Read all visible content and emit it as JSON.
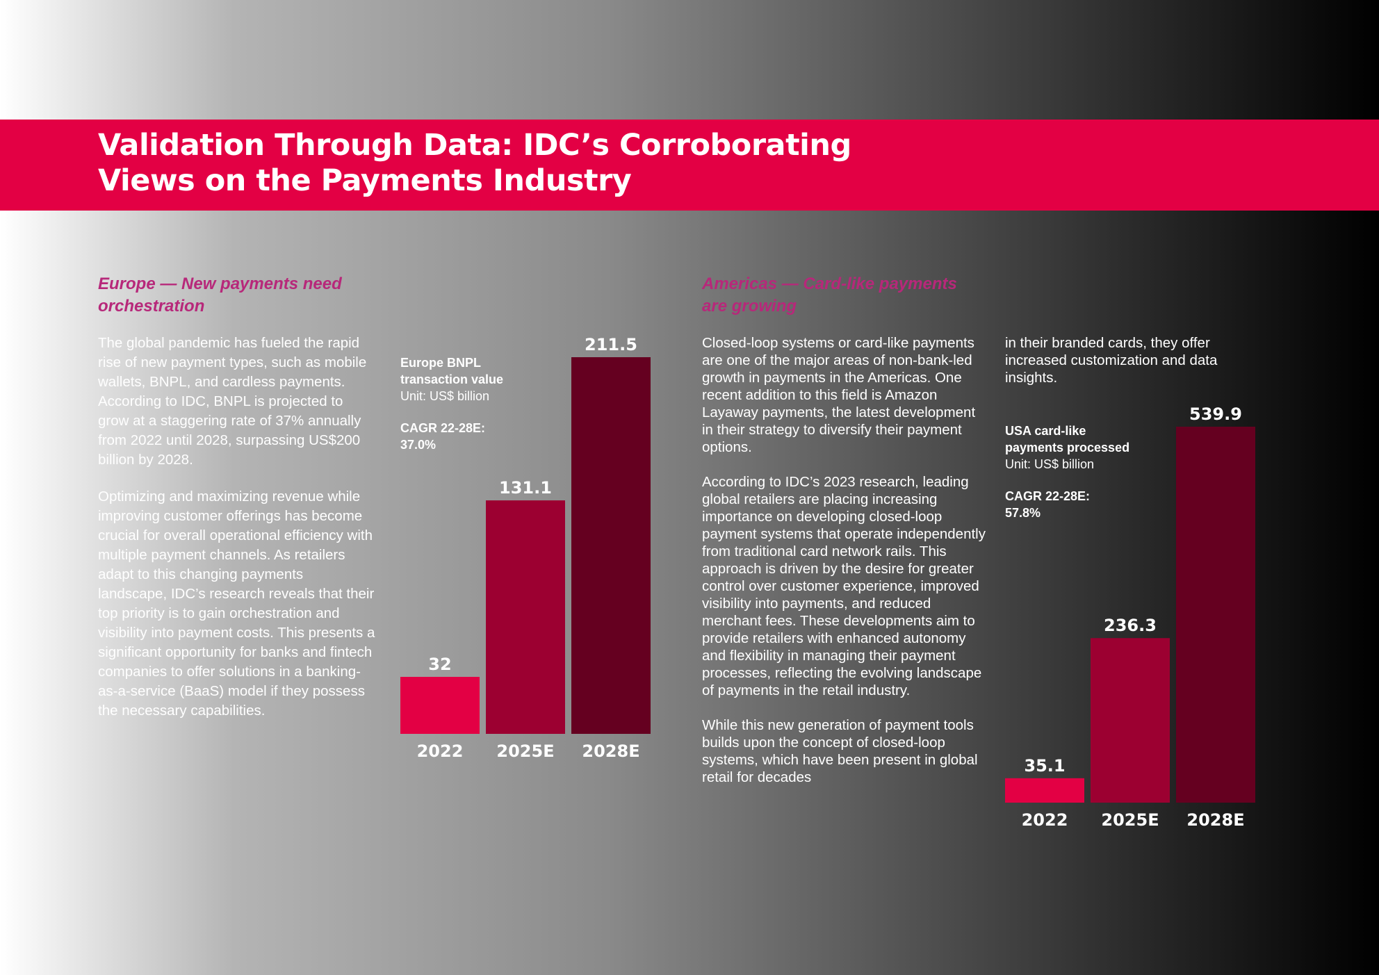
{
  "header": {
    "title_line1": "Validation Through Data: IDC’s Corroborating",
    "title_line2": "Views on the Payments Industry"
  },
  "europe": {
    "title_line1": "Europe — New payments need",
    "title_line2": "orchestration",
    "paragraphs": [
      "The global pandemic has fueled the rapid rise of new payment types, such as mobile wallets, BNPL, and cardless payments. According to IDC, BNPL is projected to grow at a staggering rate of 37% annually from 2022 until 2028, surpassing US$200 billion by 2028.",
      "Optimizing and maximizing revenue while improving customer offerings has become crucial for overall operational efficiency with multiple payment channels. As retailers adapt to this changing payments landscape, IDC’s research reveals that their top priority is to gain orchestration and visibility into payment costs. This presents a significant opportunity for banks and fintech companies to offer solutions in a banking-as-a-service (BaaS) model if they possess the necessary capabilities."
    ]
  },
  "americas": {
    "title_line1": "Americas — Card-like payments",
    "title_line2": "are growing",
    "paragraphs": [
      "Closed-loop systems or card-like payments are one of the major areas of non-bank-led growth in payments in the Americas. One recent addition to this field is Amazon Layaway payments, the latest development in their strategy to diversify their payment options.",
      "According to IDC’s 2023 research, leading global retailers are placing increasing importance on developing closed-loop payment systems that operate independently from traditional card network rails. This approach is driven by the desire for greater control over customer experience, improved visibility into payments, and reduced merchant fees. These developments aim to provide retailers with enhanced autonomy and flexibility in managing their payment processes, reflecting the evolving landscape of payments in the retail industry.",
      "While this new generation of payment tools builds upon the concept of closed-loop systems, which have been present in global retail for decades"
    ],
    "continuation": "in their branded cards, they offer increased customization and data insights."
  },
  "chart_data": [
    {
      "type": "bar",
      "title_line1": "Europe BNPL",
      "title_line2": "transaction value",
      "unit": "Unit: US$ billion",
      "cagr_label": "CAGR 22-28E:",
      "cagr_value": "37.0%",
      "categories": [
        "2022",
        "2025E",
        "2028E"
      ],
      "values": [
        32,
        131.1,
        211.5
      ],
      "value_labels": [
        "32",
        "131.1",
        "211.5"
      ],
      "colors": [
        "#e30044",
        "#9c0031",
        "#650020"
      ],
      "ylim": [
        0,
        211.5
      ]
    },
    {
      "type": "bar",
      "title_line1": "USA card-like",
      "title_line2": "payments processed",
      "unit": "Unit: US$ billion",
      "cagr_label": "CAGR 22-28E:",
      "cagr_value": "57.8%",
      "categories": [
        "2022",
        "2025E",
        "2028E"
      ],
      "values": [
        35.1,
        236.3,
        539.9
      ],
      "value_labels": [
        "35.1",
        "236.3",
        "539.9"
      ],
      "colors": [
        "#e30044",
        "#9c0031",
        "#650020"
      ],
      "ylim": [
        0,
        539.9
      ]
    }
  ]
}
